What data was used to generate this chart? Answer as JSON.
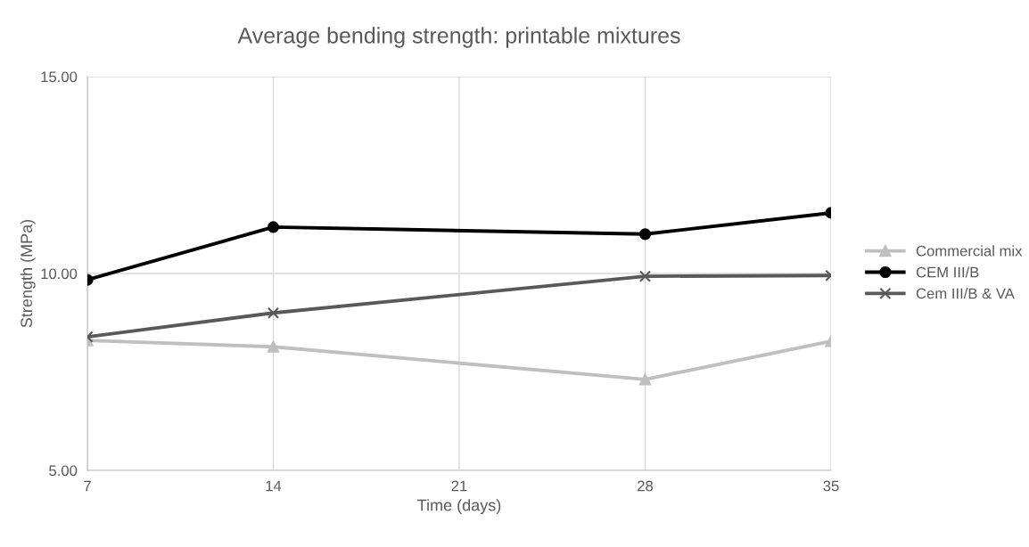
{
  "chart_data": {
    "type": "line",
    "title": "Average bending strength: printable mixtures",
    "xlabel": "Time (days)",
    "ylabel": "Strength (MPa)",
    "x": [
      7,
      14,
      28,
      35
    ],
    "series": [
      {
        "name": "Commercial mix",
        "color": "#bfbfbf",
        "marker": "triangle",
        "values": [
          8.3,
          8.14,
          7.31,
          8.28
        ]
      },
      {
        "name": "CEM III/B",
        "color": "#000000",
        "marker": "circle",
        "values": [
          9.84,
          11.18,
          11.0,
          11.54
        ]
      },
      {
        "name": "Cem III/B & VA",
        "color": "#595959",
        "marker": "cross",
        "values": [
          8.39,
          9.0,
          9.93,
          9.95
        ]
      }
    ],
    "xlim": [
      7,
      35
    ],
    "xticks": [
      7,
      14,
      21,
      28,
      35
    ],
    "ylim": [
      5,
      15
    ],
    "yticks": [
      {
        "value": 5,
        "label": "5.00"
      },
      {
        "value": 10,
        "label": "10.00"
      },
      {
        "value": 15,
        "label": "15.00"
      }
    ],
    "grid": true,
    "legend": "right",
    "line_style": "solid"
  }
}
